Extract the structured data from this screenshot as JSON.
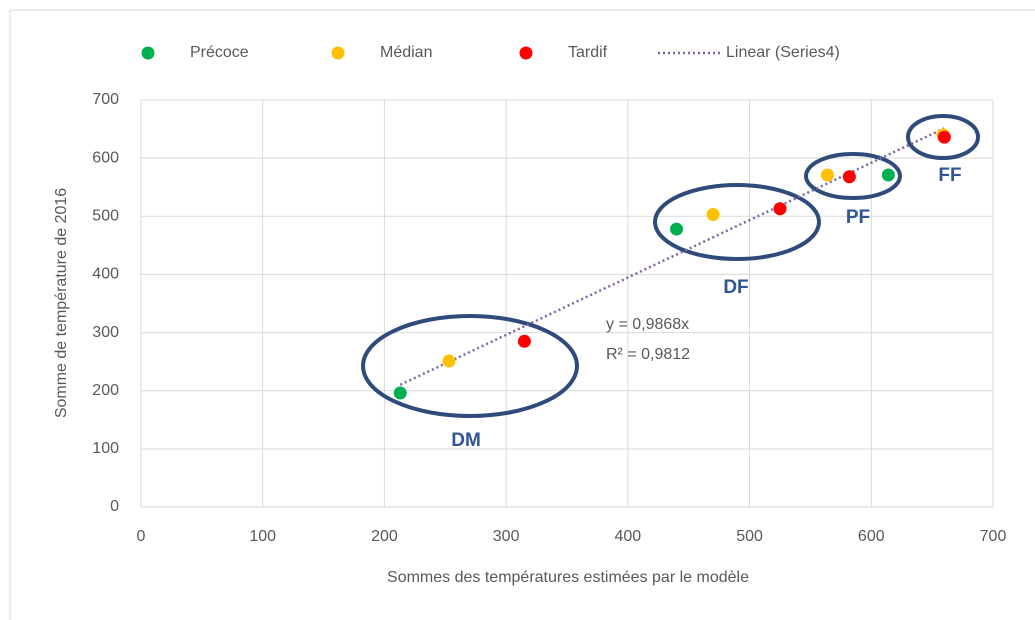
{
  "chart_data": {
    "type": "scatter",
    "x_label": "Sommes des températures estimées par le modèle",
    "y_label": "Somme de température de 2016",
    "xlim": [
      0,
      700
    ],
    "xticks": [
      0,
      100,
      200,
      300,
      400,
      500,
      600,
      700
    ],
    "ylim": [
      0,
      700
    ],
    "yticks": [
      0,
      100,
      200,
      300,
      400,
      500,
      600,
      700
    ],
    "grid": true,
    "legend": "top",
    "series": [
      {
        "name": "Précoce",
        "color": "#00b050",
        "x": [
          213,
          440,
          614
        ],
        "values": [
          196,
          478,
          571
        ]
      },
      {
        "name": "Médian",
        "color": "#ffc000",
        "x": [
          253,
          470,
          564,
          659
        ],
        "values": [
          251,
          503,
          571,
          640
        ]
      },
      {
        "name": "Tardif",
        "color": "#ff0000",
        "x": [
          315,
          525,
          582,
          660
        ],
        "values": [
          285,
          513,
          568,
          636
        ]
      }
    ],
    "trendline": {
      "name": "Linear (Series4)",
      "color": "#8064a2",
      "slope": 0.9868,
      "x": [
        213,
        660
      ]
    },
    "equation": [
      "y = 0,9868x",
      "R² = 0,9812"
    ],
    "annotations": [
      "DM",
      "DF",
      "PF",
      "FF"
    ]
  }
}
